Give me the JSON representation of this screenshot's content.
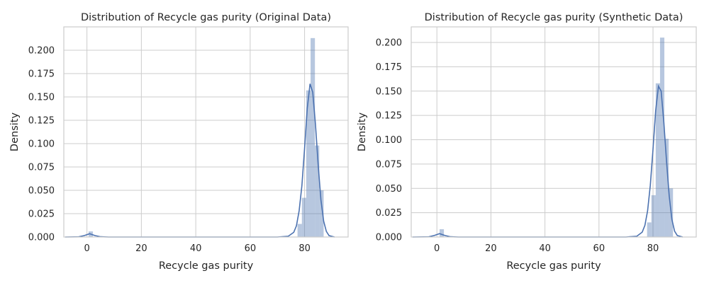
{
  "chart_data": [
    {
      "type": "bar",
      "title": "Distribution of Recycle gas purity (Original Data)",
      "xlabel": "Recycle gas purity",
      "ylabel": "Density",
      "xlim": [
        -8.5,
        96
      ],
      "ylim": [
        0,
        0.225
      ],
      "xticks": [
        0,
        20,
        40,
        60,
        80
      ],
      "xtick_labels": [
        "0",
        "20",
        "40",
        "60",
        "80"
      ],
      "yticks": [
        0,
        0.025,
        0.05,
        0.075,
        0.1,
        0.125,
        0.15,
        0.175,
        0.2
      ],
      "ytick_labels": [
        "0.000",
        "0.025",
        "0.050",
        "0.075",
        "0.100",
        "0.125",
        "0.150",
        "0.175",
        "0.200"
      ],
      "grid": true,
      "bin_width": 1.6,
      "bars": [
        {
          "x": 1.4,
          "y": 0.006
        },
        {
          "x": 78.2,
          "y": 0.014
        },
        {
          "x": 79.8,
          "y": 0.042
        },
        {
          "x": 81.4,
          "y": 0.157
        },
        {
          "x": 83.0,
          "y": 0.213
        },
        {
          "x": 84.6,
          "y": 0.098
        },
        {
          "x": 86.2,
          "y": 0.05
        }
      ],
      "kde": [
        {
          "x": -8,
          "y": 0.0
        },
        {
          "x": -3,
          "y": 0.0002
        },
        {
          "x": -1,
          "y": 0.0015
        },
        {
          "x": 1,
          "y": 0.0035
        },
        {
          "x": 3,
          "y": 0.0015
        },
        {
          "x": 5,
          "y": 0.0003
        },
        {
          "x": 8,
          "y": 0.0
        },
        {
          "x": 70,
          "y": 0.0
        },
        {
          "x": 74,
          "y": 0.0008
        },
        {
          "x": 76,
          "y": 0.005
        },
        {
          "x": 77,
          "y": 0.012
        },
        {
          "x": 78,
          "y": 0.028
        },
        {
          "x": 79,
          "y": 0.055
        },
        {
          "x": 80,
          "y": 0.095
        },
        {
          "x": 81,
          "y": 0.138
        },
        {
          "x": 82,
          "y": 0.164
        },
        {
          "x": 83,
          "y": 0.155
        },
        {
          "x": 84,
          "y": 0.12
        },
        {
          "x": 85,
          "y": 0.077
        },
        {
          "x": 86,
          "y": 0.04
        },
        {
          "x": 87,
          "y": 0.017
        },
        {
          "x": 88,
          "y": 0.006
        },
        {
          "x": 89,
          "y": 0.0015
        },
        {
          "x": 91,
          "y": 0.0
        }
      ]
    },
    {
      "type": "bar",
      "title": "Distribution of Recycle gas purity (Synthetic Data)",
      "xlabel": "Recycle gas purity",
      "ylabel": "Density",
      "xlim": [
        -9.5,
        96
      ],
      "ylim": [
        0,
        0.216
      ],
      "xticks": [
        0,
        20,
        40,
        60,
        80
      ],
      "xtick_labels": [
        "0",
        "20",
        "40",
        "60",
        "80"
      ],
      "yticks": [
        0,
        0.025,
        0.05,
        0.075,
        0.1,
        0.125,
        0.15,
        0.175,
        0.2
      ],
      "ytick_labels": [
        "0.000",
        "0.025",
        "0.050",
        "0.075",
        "0.100",
        "0.125",
        "0.150",
        "0.175",
        "0.200"
      ],
      "grid": true,
      "bin_width": 1.6,
      "bars": [
        {
          "x": 1.8,
          "y": 0.008
        },
        {
          "x": 78.6,
          "y": 0.015
        },
        {
          "x": 80.2,
          "y": 0.043
        },
        {
          "x": 81.8,
          "y": 0.158
        },
        {
          "x": 83.4,
          "y": 0.205
        },
        {
          "x": 85.0,
          "y": 0.101
        },
        {
          "x": 86.6,
          "y": 0.05
        }
      ],
      "kde": [
        {
          "x": -9,
          "y": 0.0
        },
        {
          "x": -3,
          "y": 0.0002
        },
        {
          "x": -1,
          "y": 0.0015
        },
        {
          "x": 1,
          "y": 0.0035
        },
        {
          "x": 3,
          "y": 0.0015
        },
        {
          "x": 5,
          "y": 0.0003
        },
        {
          "x": 8,
          "y": 0.0
        },
        {
          "x": 70,
          "y": 0.0
        },
        {
          "x": 74,
          "y": 0.0008
        },
        {
          "x": 76,
          "y": 0.005
        },
        {
          "x": 77,
          "y": 0.012
        },
        {
          "x": 78,
          "y": 0.027
        },
        {
          "x": 79,
          "y": 0.053
        },
        {
          "x": 80,
          "y": 0.09
        },
        {
          "x": 81,
          "y": 0.13
        },
        {
          "x": 82,
          "y": 0.155
        },
        {
          "x": 83,
          "y": 0.15
        },
        {
          "x": 84,
          "y": 0.118
        },
        {
          "x": 85,
          "y": 0.078
        },
        {
          "x": 86,
          "y": 0.042
        },
        {
          "x": 87,
          "y": 0.018
        },
        {
          "x": 88,
          "y": 0.006
        },
        {
          "x": 89,
          "y": 0.0015
        },
        {
          "x": 91,
          "y": 0.0
        }
      ]
    }
  ]
}
